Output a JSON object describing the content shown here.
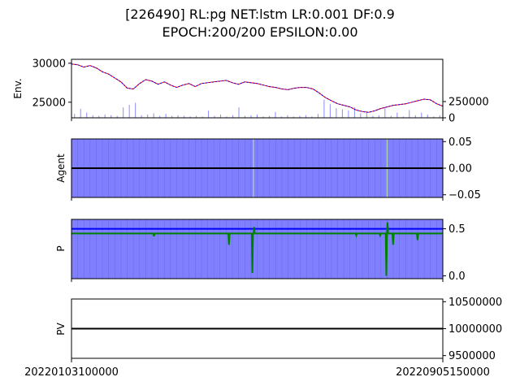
{
  "figure": {
    "title_line1": "[226490] RL:pg NET:lstm LR:0.001 DF:0.9",
    "title_line2": "EPOCH:200/200 EPSILON:0.00"
  },
  "chart_data": [
    {
      "type": "line",
      "panel": "env",
      "ylabel": "Env.",
      "ylim": [
        23000,
        30500
      ],
      "yticks": [
        25000,
        30000
      ],
      "ytick_labels": [
        "25000",
        "30000"
      ],
      "price_series": {
        "name": "",
        "values": [
          29900,
          29800,
          29500,
          29700,
          29400,
          28900,
          28600,
          28100,
          27600,
          26800,
          26700,
          27400,
          27900,
          27700,
          27300,
          27600,
          27200,
          26900,
          27200,
          27400,
          27000,
          27400,
          27500,
          27600,
          27700,
          27800,
          27500,
          27300,
          27600,
          27500,
          27400,
          27200,
          27000,
          26900,
          26700,
          26600,
          26800,
          26900,
          26900,
          26700,
          26200,
          25600,
          25200,
          24800,
          24600,
          24400,
          24000,
          23800,
          23700,
          23900,
          24200,
          24400,
          24600,
          24700,
          24800,
          25000,
          25200,
          25400,
          25300,
          24800,
          24500
        ]
      },
      "secondary_axis": {
        "ylim": [
          0,
          900000
        ],
        "yticks": [
          0,
          250000
        ],
        "ytick_labels": [
          "0",
          "250000"
        ]
      },
      "volume_series": {
        "name": "",
        "values": [
          60000,
          140000,
          80000,
          40000,
          30000,
          50000,
          40000,
          30000,
          160000,
          200000,
          230000,
          40000,
          50000,
          70000,
          30000,
          60000,
          30000,
          40000,
          30000,
          20000,
          30000,
          20000,
          110000,
          30000,
          50000,
          20000,
          40000,
          160000,
          30000,
          40000,
          50000,
          20000,
          30000,
          90000,
          20000,
          40000,
          20000,
          30000,
          40000,
          20000,
          60000,
          280000,
          210000,
          150000,
          130000,
          110000,
          160000,
          70000,
          90000,
          30000,
          40000,
          150000,
          30000,
          80000,
          20000,
          120000,
          40000,
          80000,
          50000,
          20000,
          40000
        ]
      },
      "colors": {
        "price_up": "#0000ff",
        "price_down": "#ff0000",
        "volume": "#0000ff"
      }
    },
    {
      "type": "line",
      "panel": "agent",
      "ylabel": "Agent",
      "ylim": [
        -0.055,
        0.055
      ],
      "yticks": [
        -0.05,
        0.0,
        0.05
      ],
      "ytick_labels": [
        "−0.05",
        "0.00",
        "0.05"
      ],
      "action_line": {
        "name": "",
        "values": [
          0.0,
          0.0
        ]
      },
      "hold_fill_fraction": 1.0,
      "highlight_positions": [
        0.49,
        0.85
      ],
      "colors": {
        "fill": "#8080ff",
        "line": "#000000"
      }
    },
    {
      "type": "line",
      "panel": "p",
      "ylabel": "P",
      "ylim": [
        -0.03,
        0.6
      ],
      "yticks": [
        0.0,
        0.5
      ],
      "ytick_labels": [
        "0.0",
        "0.5"
      ],
      "baseline": 0.5,
      "policy_series": {
        "name": "",
        "baseline_value": 0.45,
        "spikes": [
          {
            "pos": 0.222,
            "value": 0.42
          },
          {
            "pos": 0.424,
            "value": 0.33
          },
          {
            "pos": 0.487,
            "value": 0.03
          },
          {
            "pos": 0.492,
            "value": 0.52
          },
          {
            "pos": 0.767,
            "value": 0.43
          },
          {
            "pos": 0.831,
            "value": 0.43
          },
          {
            "pos": 0.848,
            "value": 0.0
          },
          {
            "pos": 0.851,
            "value": 0.57
          },
          {
            "pos": 0.866,
            "value": 0.33
          },
          {
            "pos": 0.932,
            "value": 0.38
          }
        ]
      },
      "colors": {
        "fill": "#8080ff",
        "baseline": "#0000ff",
        "line": "#008000"
      }
    },
    {
      "type": "line",
      "panel": "pv",
      "ylabel": "PV",
      "ylim": [
        9450000,
        10550000
      ],
      "yticks": [
        9500000,
        10000000,
        10500000
      ],
      "ytick_labels": [
        "9500000",
        "10000000",
        "10500000"
      ],
      "pv_series": {
        "name": "",
        "values": [
          10000000,
          10000000
        ]
      },
      "colors": {
        "line": "#000000"
      }
    }
  ],
  "x_axis": {
    "tick_labels": [
      "20220103100000",
      "20220905150000"
    ]
  }
}
